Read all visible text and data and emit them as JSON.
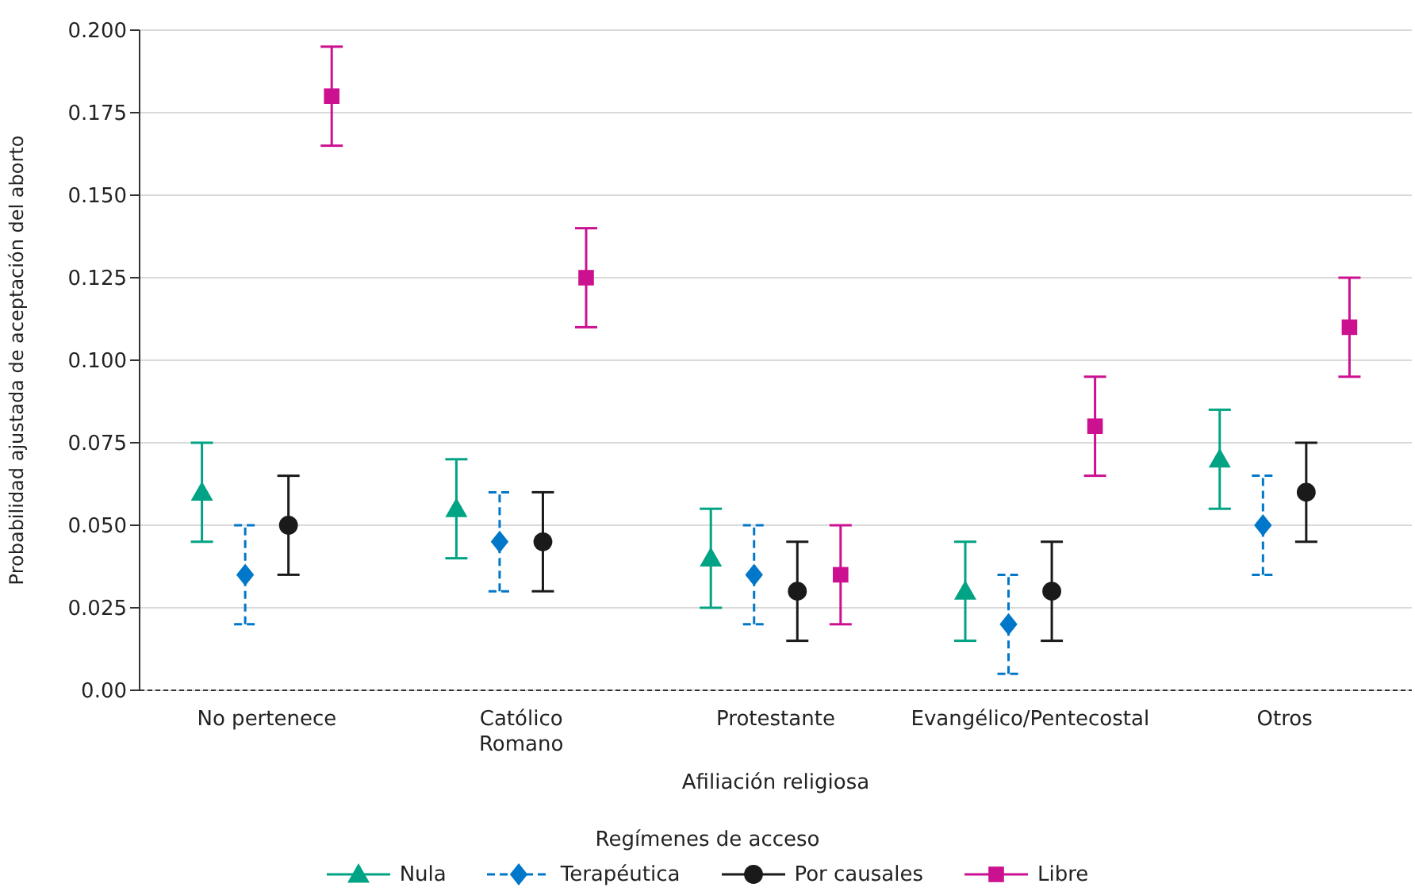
{
  "chart_data": {
    "type": "scatter",
    "xlabel": "Afiliación religiosa",
    "ylabel": "Probabilidad ajustada de aceptación del aborto",
    "legend_title": "Regímenes de acceso",
    "categories": [
      "No pertenece",
      "Católico Romano",
      "Protestante",
      "Evangélico/Pentecostal",
      "Otros"
    ],
    "ylim": [
      0,
      0.2
    ],
    "yticks": [
      {
        "value": 0,
        "label": "0.00"
      },
      {
        "value": 0.025,
        "label": "0.025"
      },
      {
        "value": 0.05,
        "label": "0.050"
      },
      {
        "value": 0.075,
        "label": "0.075"
      },
      {
        "value": 0.1,
        "label": "0.100"
      },
      {
        "value": 0.125,
        "label": "0.125"
      },
      {
        "value": 0.15,
        "label": "0.150"
      },
      {
        "value": 0.175,
        "label": "0.175"
      },
      {
        "value": 0.2,
        "label": "0.200"
      }
    ],
    "grid": "y",
    "legend": "bottom",
    "series": [
      {
        "name": "Nula",
        "color": "#00a383",
        "marker": "triangle",
        "line_style": "solid",
        "values": [
          0.06,
          0.055,
          0.04,
          0.03,
          0.07
        ],
        "errors": [
          [
            0.045,
            0.075
          ],
          [
            0.04,
            0.07
          ],
          [
            0.025,
            0.055
          ],
          [
            0.015,
            0.045
          ],
          [
            0.055,
            0.085
          ]
        ]
      },
      {
        "name": "Terapéutica",
        "color": "#0077c8",
        "marker": "diamond",
        "line_style": "dashed",
        "values": [
          0.035,
          0.045,
          0.035,
          0.02,
          0.05
        ],
        "errors": [
          [
            0.02,
            0.05
          ],
          [
            0.03,
            0.06
          ],
          [
            0.02,
            0.05
          ],
          [
            0.005,
            0.035
          ],
          [
            0.035,
            0.065
          ]
        ]
      },
      {
        "name": "Por causales",
        "color": "#1a1a1a",
        "marker": "circle",
        "line_style": "solid",
        "values": [
          0.05,
          0.045,
          0.03,
          0.03,
          0.06
        ],
        "errors": [
          [
            0.035,
            0.065
          ],
          [
            0.03,
            0.06
          ],
          [
            0.015,
            0.045
          ],
          [
            0.015,
            0.045
          ],
          [
            0.045,
            0.075
          ]
        ]
      },
      {
        "name": "Libre",
        "color": "#cc1190",
        "marker": "square",
        "line_style": "solid",
        "values": [
          0.18,
          0.125,
          0.035,
          0.08,
          0.11
        ],
        "errors": [
          [
            0.165,
            0.195
          ],
          [
            0.11,
            0.14
          ],
          [
            0.02,
            0.05
          ],
          [
            0.065,
            0.095
          ],
          [
            0.095,
            0.125
          ]
        ]
      }
    ]
  }
}
